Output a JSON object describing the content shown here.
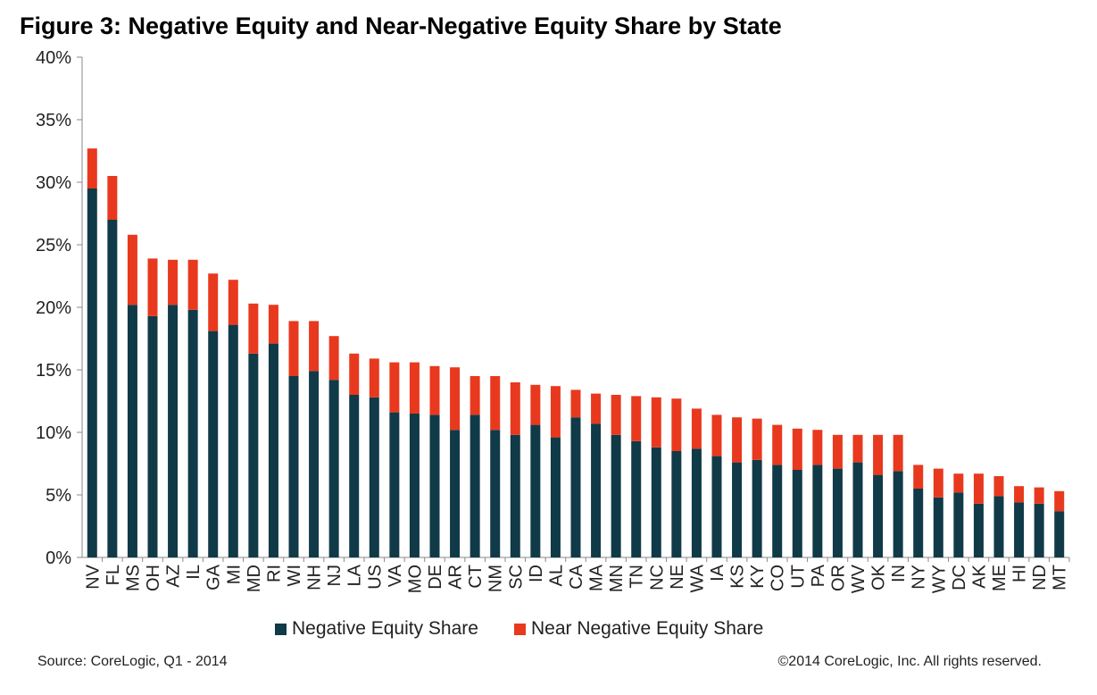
{
  "title": "Figure 3: Negative Equity and Near-Negative Equity Share by State",
  "footer": {
    "source": "Source: CoreLogic, Q1 - 2014",
    "copyright": "©2014 CoreLogic, Inc. All rights reserved."
  },
  "colors": {
    "negative": "#103a47",
    "near_negative": "#e8391e",
    "axis": "#888888",
    "text": "#222222"
  },
  "chart_data": {
    "type": "bar",
    "stacked": true,
    "title": "Figure 3: Negative Equity and Near-Negative Equity Share by State",
    "xlabel": "",
    "ylabel": "",
    "ylim": [
      0,
      40
    ],
    "yticks": [
      0,
      5,
      10,
      15,
      20,
      25,
      30,
      35,
      40
    ],
    "ytick_labels": [
      "0%",
      "5%",
      "10%",
      "15%",
      "20%",
      "25%",
      "30%",
      "35%",
      "40%"
    ],
    "grid": false,
    "legend_position": "bottom",
    "categories": [
      "NV",
      "FL",
      "MS",
      "OH",
      "AZ",
      "IL",
      "GA",
      "MI",
      "MD",
      "RI",
      "WI",
      "NH",
      "NJ",
      "LA",
      "US",
      "VA",
      "MO",
      "DE",
      "AR",
      "CT",
      "NM",
      "SC",
      "ID",
      "AL",
      "CA",
      "MA",
      "MN",
      "TN",
      "NC",
      "NE",
      "WA",
      "IA",
      "KS",
      "KY",
      "CO",
      "UT",
      "PA",
      "OR",
      "WV",
      "OK",
      "IN",
      "NY",
      "WY",
      "DC",
      "AK",
      "ME",
      "HI",
      "ND",
      "MT"
    ],
    "series": [
      {
        "name": "Negative Equity Share",
        "color": "#103a47",
        "values": [
          29.5,
          27.0,
          20.2,
          19.3,
          20.2,
          19.8,
          18.1,
          18.6,
          16.3,
          17.1,
          14.5,
          14.9,
          14.2,
          13.0,
          12.8,
          11.6,
          11.5,
          11.4,
          10.2,
          11.4,
          10.2,
          9.8,
          10.6,
          9.6,
          11.2,
          10.7,
          9.8,
          9.3,
          8.8,
          8.5,
          8.7,
          8.1,
          7.6,
          7.8,
          7.4,
          7.0,
          7.4,
          7.1,
          7.6,
          6.6,
          6.9,
          5.5,
          4.8,
          5.2,
          4.3,
          4.9,
          4.4,
          4.3,
          3.7
        ]
      },
      {
        "name": "Near Negative Equity Share",
        "color": "#e8391e",
        "values": [
          3.2,
          3.5,
          5.6,
          4.6,
          3.6,
          4.0,
          4.6,
          3.6,
          4.0,
          3.1,
          4.4,
          4.0,
          3.5,
          3.3,
          3.1,
          4.0,
          4.1,
          3.9,
          5.0,
          3.1,
          4.3,
          4.2,
          3.2,
          4.1,
          2.2,
          2.4,
          3.2,
          3.6,
          4.0,
          4.2,
          3.2,
          3.3,
          3.6,
          3.3,
          3.2,
          3.3,
          2.8,
          2.7,
          2.2,
          3.2,
          2.9,
          1.9,
          2.3,
          1.5,
          2.4,
          1.6,
          1.3,
          1.3,
          1.6
        ]
      }
    ]
  }
}
